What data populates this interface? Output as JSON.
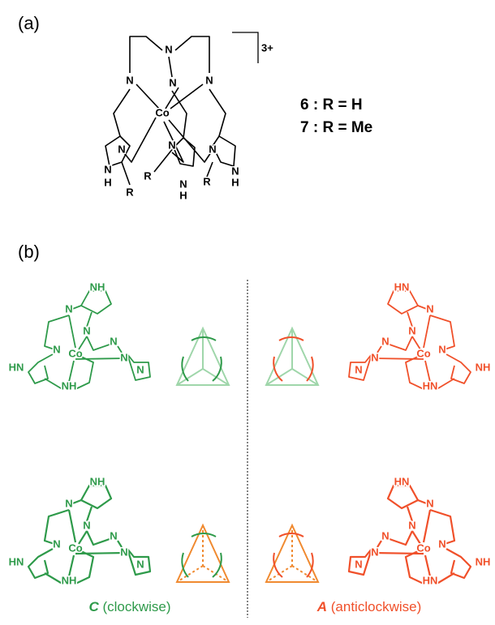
{
  "panel_a": {
    "label": "(a)",
    "charge": "3+",
    "compounds": [
      "6 : R = H",
      "7 : R = Me"
    ],
    "atoms": [
      "N",
      "N",
      "N",
      "N",
      "Co",
      "N",
      "N",
      "N",
      "N",
      "H",
      "R",
      "R",
      "N",
      "H",
      "R",
      "N",
      "H"
    ]
  },
  "panel_b": {
    "label": "(b)",
    "molecules": [
      {
        "atoms": [
          "NH",
          "N",
          "N",
          "N",
          "Co",
          "N",
          "HN",
          "N",
          "N",
          "NH"
        ]
      },
      {
        "atoms": [
          "HN",
          "N",
          "N",
          "N",
          "Co",
          "N",
          "NH",
          "N",
          "N",
          "HN"
        ]
      },
      {
        "atoms": [
          "NH",
          "N",
          "N",
          "N",
          "Co",
          "N",
          "HN",
          "N",
          "N",
          "NH"
        ]
      },
      {
        "atoms": [
          "HN",
          "N",
          "N",
          "N",
          "Co",
          "N",
          "NH",
          "N",
          "N",
          "HN"
        ]
      }
    ],
    "captions": [
      {
        "letter": "C",
        "text": "(clockwise)"
      },
      {
        "letter": "A",
        "text": "(anticlockwise)"
      }
    ]
  }
}
